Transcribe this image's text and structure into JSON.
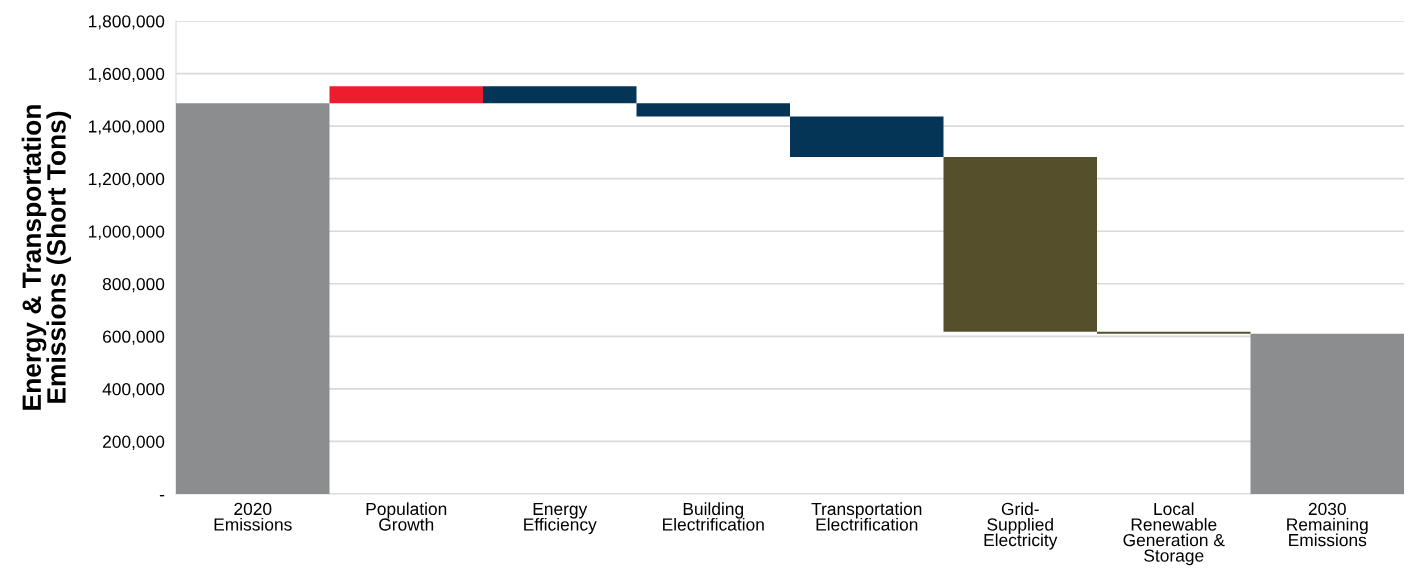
{
  "chart_data": {
    "type": "bar",
    "ylabel": "Energy & Transportation\nEmissions (Short Tons)",
    "categories": [
      "2020\nEmissions",
      "Population\nGrowth",
      "Energy\nEfficiency",
      "Building\nElectrification",
      "Transportation\nElectrification",
      "Grid-\nSupplied\nElectricity",
      "Local\nRenewable\nGeneration &\nStorage",
      "2030\nRemaining\nEmissions"
    ],
    "values": [
      1487000,
      65000,
      -65000,
      -50000,
      -155000,
      -665000,
      -7000,
      610000
    ],
    "base": [
      0,
      1487000,
      1552000,
      1487000,
      1437000,
      1282000,
      617000,
      0
    ],
    "colors": [
      "#8c8d8f",
      "#ed1c2e",
      "#043556",
      "#043556",
      "#043556",
      "#564f2c",
      "#564f2c",
      "#8c8d8f"
    ],
    "ylim": [
      0,
      1800000
    ],
    "yticks": [
      {
        "value": 0,
        "label": "-"
      },
      {
        "value": 200000,
        "label": "200,000"
      },
      {
        "value": 400000,
        "label": "400,000"
      },
      {
        "value": 600000,
        "label": "600,000"
      },
      {
        "value": 800000,
        "label": "800,000"
      },
      {
        "value": 1000000,
        "label": "1,000,000"
      },
      {
        "value": 1200000,
        "label": "1,200,000"
      },
      {
        "value": 1400000,
        "label": "1,400,000"
      },
      {
        "value": 1600000,
        "label": "1,600,000"
      },
      {
        "value": 1800000,
        "label": "1,800,000"
      }
    ],
    "grid": "y",
    "legend": false
  }
}
